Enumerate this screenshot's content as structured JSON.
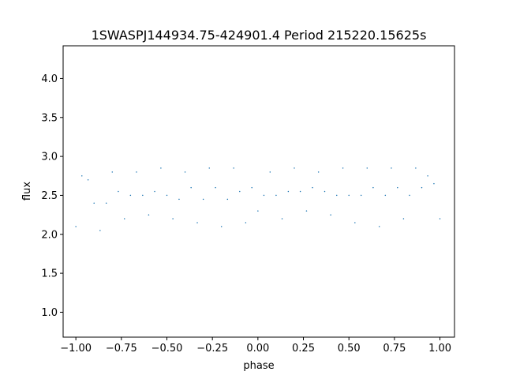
{
  "chart_data": {
    "type": "scatter",
    "title": "1SWASPJ144934.75-424901.4 Period 215220.15625s",
    "xlabel": "phase",
    "ylabel": "flux",
    "xlim": [
      -1.07,
      1.08
    ],
    "ylim": [
      0.68,
      4.42
    ],
    "xticks": [
      -1.0,
      -0.75,
      -0.5,
      -0.25,
      0.0,
      0.25,
      0.5,
      0.75,
      1.0
    ],
    "xtick_labels": [
      "−1.00",
      "−0.75",
      "−0.50",
      "−0.25",
      "0.00",
      "0.25",
      "0.50",
      "0.75",
      "1.00"
    ],
    "yticks": [
      1.0,
      1.5,
      2.0,
      2.5,
      3.0,
      3.5,
      4.0
    ],
    "ytick_labels": [
      "1.0",
      "1.5",
      "2.0",
      "2.5",
      "3.0",
      "3.5",
      "4.0"
    ],
    "grid": false,
    "legend": "none",
    "series": [
      {
        "color": "#1f77b4",
        "marker_size": 1,
        "x": [
          -1.0,
          -0.967,
          -0.933,
          -0.9,
          -0.867,
          -0.833,
          -0.8,
          -0.767,
          -0.733,
          -0.7,
          -0.667,
          -0.633,
          -0.6,
          -0.567,
          -0.533,
          -0.5,
          -0.467,
          -0.433,
          -0.4,
          -0.367,
          -0.333,
          -0.3,
          -0.267,
          -0.233,
          -0.2,
          -0.167,
          -0.133,
          -0.1,
          -0.067,
          -0.033,
          0.0,
          0.033,
          0.067,
          0.1,
          0.133,
          0.167,
          0.2,
          0.233,
          0.267,
          0.3,
          0.333,
          0.367,
          0.4,
          0.433,
          0.467,
          0.5,
          0.533,
          0.567,
          0.6,
          0.633,
          0.667,
          0.7,
          0.733,
          0.767,
          0.8,
          0.833,
          0.867,
          0.9,
          0.933,
          0.967,
          1.0
        ],
        "y": [
          2.1,
          2.75,
          2.7,
          2.4,
          2.05,
          2.4,
          2.8,
          2.55,
          2.2,
          2.5,
          2.8,
          2.5,
          2.25,
          2.55,
          2.85,
          2.5,
          2.2,
          2.45,
          2.8,
          2.6,
          2.15,
          2.45,
          2.85,
          2.6,
          2.1,
          2.45,
          2.85,
          2.55,
          2.15,
          2.6,
          2.3,
          2.5,
          2.8,
          2.5,
          2.2,
          2.55,
          2.85,
          2.55,
          2.3,
          2.6,
          2.8,
          2.55,
          2.25,
          2.5,
          2.85,
          2.5,
          2.15,
          2.5,
          2.85,
          2.6,
          2.1,
          2.5,
          2.85,
          2.6,
          2.2,
          2.5,
          2.85,
          2.6,
          2.75,
          2.65,
          2.2
        ]
      }
    ]
  }
}
